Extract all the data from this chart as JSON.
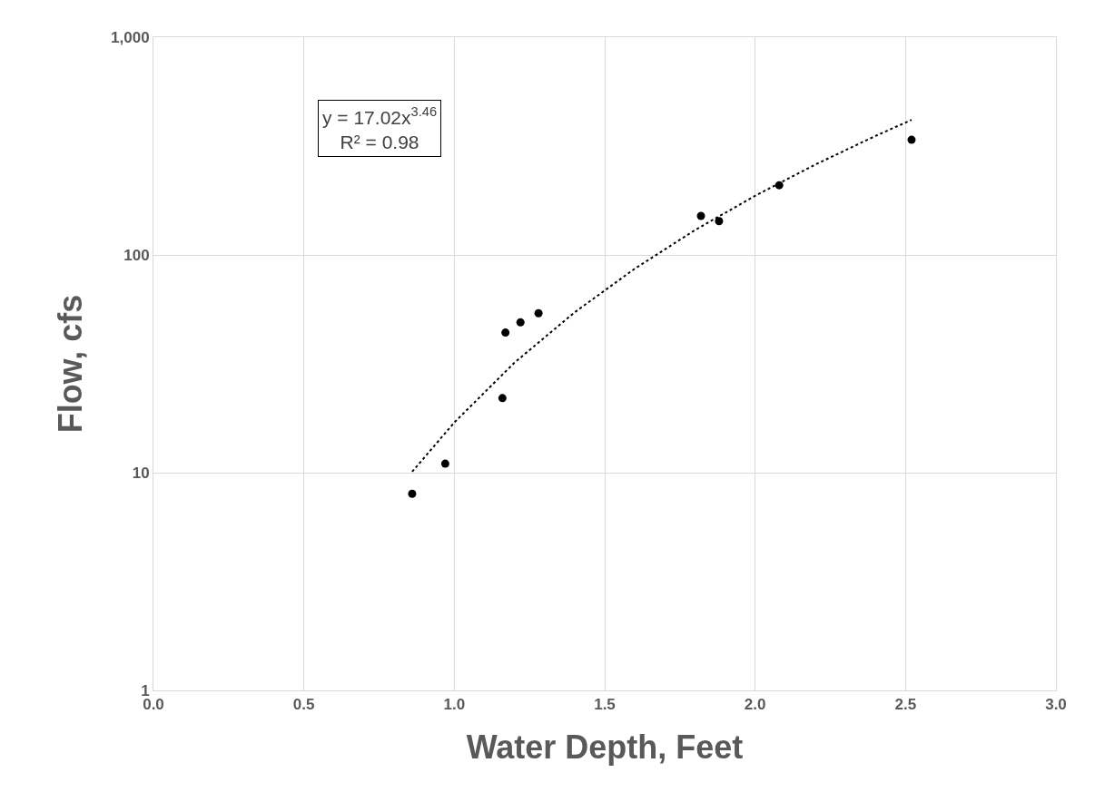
{
  "chart_data": {
    "type": "scatter",
    "xlabel": "Water Depth, Feet",
    "ylabel": "Flow, cfs",
    "log": "y",
    "grid": true,
    "marker": "circle",
    "xlim": [
      0,
      3
    ],
    "xticks": [
      {
        "value": 0,
        "label": "0.0"
      },
      {
        "value": 0.5,
        "label": "0.5"
      },
      {
        "value": 1,
        "label": "1.0"
      },
      {
        "value": 1.5,
        "label": "1.5"
      },
      {
        "value": 2,
        "label": "2.0"
      },
      {
        "value": 2.5,
        "label": "2.5"
      },
      {
        "value": 3,
        "label": "3.0"
      }
    ],
    "ylim": [
      1,
      1000
    ],
    "yticks": [
      1,
      10,
      100,
      {
        "value": 1000,
        "label": "1,000"
      }
    ],
    "series": [
      {
        "color": "#000000",
        "x": [
          0.86,
          0.97,
          1.16,
          1.17,
          1.22,
          1.28,
          1.82,
          1.88,
          2.08,
          2.52
        ],
        "values": [
          8,
          11,
          22,
          44,
          49,
          54,
          151,
          143,
          209,
          338
        ]
      },
      {
        "type": "line",
        "color": "#000000",
        "line_style": "dotted",
        "marker": "none",
        "x": [
          0.86,
          1.0,
          1.2,
          1.4,
          1.6,
          1.8,
          2.0,
          2.2,
          2.4,
          2.52
        ],
        "values": [
          10.1,
          17,
          32,
          54.5,
          86.5,
          130,
          187,
          260,
          352,
          417
        ]
      }
    ],
    "annotations": [
      "y = 17.02x$^{3.46}$",
      "R² = 0.98"
    ]
  }
}
